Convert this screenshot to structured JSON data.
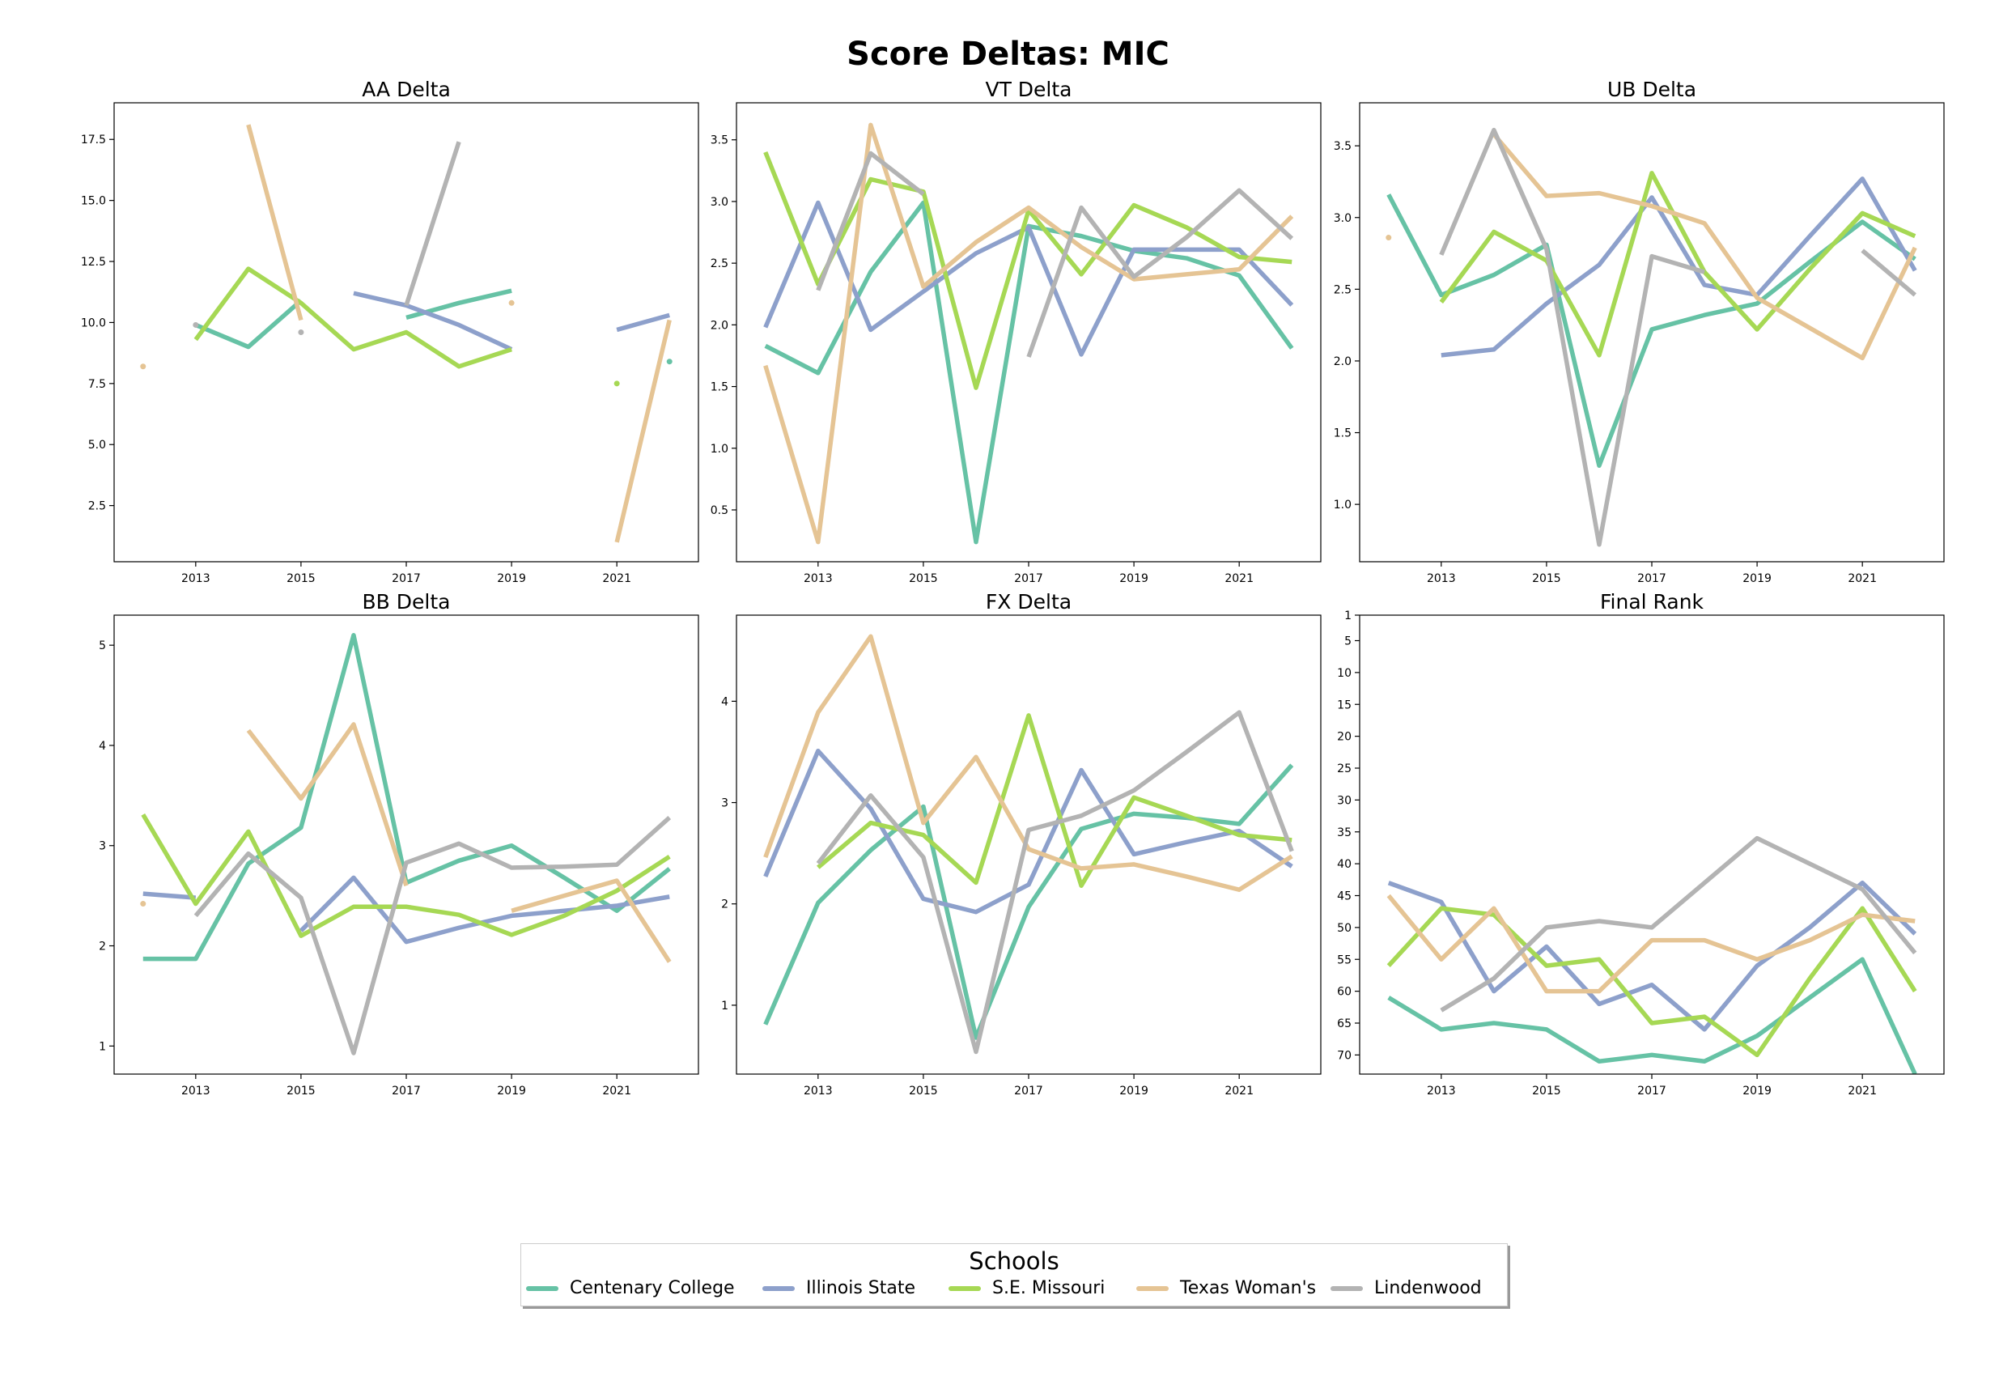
{
  "figure": {
    "title": "Score Deltas: MIC",
    "legend_title": "Schools"
  },
  "schools": [
    {
      "name": "Centenary College",
      "color": "#66c2a5"
    },
    {
      "name": "Illinois State",
      "color": "#8da0cb"
    },
    {
      "name": "S.E. Missouri",
      "color": "#a6d854"
    },
    {
      "name": "Texas Woman's",
      "color": "#e5c494"
    },
    {
      "name": "Lindenwood",
      "color": "#b3b3b3"
    }
  ],
  "chart_data": [
    {
      "type": "line",
      "title": "AA Delta",
      "x": [
        2012,
        2013,
        2014,
        2015,
        2016,
        2017,
        2018,
        2019,
        2020,
        2021,
        2022
      ],
      "xticks": [
        2013,
        2015,
        2017,
        2019,
        2021
      ],
      "ylim": [
        0.2,
        19.0
      ],
      "yticks": [
        2.5,
        5.0,
        7.5,
        10.0,
        12.5,
        15.0,
        17.5
      ],
      "ytick_labels": [
        "2.5",
        "5.0",
        "7.5",
        "10.0",
        "12.5",
        "15.0",
        "17.5"
      ],
      "inverted": false,
      "series": [
        {
          "name": "Centenary College",
          "values": [
            null,
            9.9,
            9.0,
            10.9,
            null,
            10.2,
            10.8,
            11.3,
            null,
            null,
            8.4
          ]
        },
        {
          "name": "Illinois State",
          "values": [
            null,
            null,
            null,
            null,
            11.2,
            10.7,
            9.9,
            8.9,
            null,
            9.7,
            10.3
          ]
        },
        {
          "name": "S.E. Missouri",
          "values": [
            null,
            9.3,
            12.2,
            10.8,
            8.9,
            9.6,
            8.2,
            8.9,
            null,
            7.5,
            null
          ]
        },
        {
          "name": "Texas Woman's",
          "values": [
            8.2,
            null,
            18.1,
            10.1,
            null,
            null,
            null,
            10.8,
            null,
            1.0,
            10.1
          ]
        },
        {
          "name": "Lindenwood",
          "values": [
            null,
            9.9,
            null,
            9.6,
            null,
            10.7,
            17.4,
            null,
            null,
            null,
            null
          ]
        }
      ]
    },
    {
      "type": "line",
      "title": "VT Delta",
      "x": [
        2012,
        2013,
        2014,
        2015,
        2016,
        2017,
        2018,
        2019,
        2020,
        2021,
        2022
      ],
      "xticks": [
        2013,
        2015,
        2017,
        2019,
        2021
      ],
      "ylim": [
        0.08,
        3.8
      ],
      "yticks": [
        0.5,
        1.0,
        1.5,
        2.0,
        2.5,
        3.0,
        3.5
      ],
      "ytick_labels": [
        "0.5",
        "1.0",
        "1.5",
        "2.0",
        "2.5",
        "3.0",
        "3.5"
      ],
      "inverted": false,
      "series": [
        {
          "name": "Centenary College",
          "values": [
            1.83,
            1.61,
            2.43,
            2.99,
            0.24,
            2.8,
            2.72,
            2.6,
            2.54,
            2.4,
            1.81
          ]
        },
        {
          "name": "Illinois State",
          "values": [
            1.98,
            2.99,
            1.96,
            2.27,
            2.58,
            2.79,
            1.76,
            2.61,
            2.61,
            2.61,
            2.16
          ]
        },
        {
          "name": "S.E. Missouri",
          "values": [
            3.4,
            2.33,
            3.18,
            3.08,
            1.49,
            2.93,
            2.41,
            2.97,
            2.79,
            2.55,
            2.51
          ]
        },
        {
          "name": "Texas Woman's",
          "values": [
            1.67,
            0.24,
            3.62,
            2.31,
            2.67,
            2.95,
            2.63,
            2.37,
            2.41,
            2.45,
            2.88
          ]
        },
        {
          "name": "Lindenwood",
          "values": [
            null,
            2.28,
            3.39,
            3.06,
            null,
            1.74,
            2.95,
            2.39,
            2.71,
            3.09,
            2.7
          ]
        }
      ]
    },
    {
      "type": "line",
      "title": "UB Delta",
      "x": [
        2012,
        2013,
        2014,
        2015,
        2016,
        2017,
        2018,
        2019,
        2020,
        2021,
        2022
      ],
      "xticks": [
        2013,
        2015,
        2017,
        2019,
        2021
      ],
      "ylim": [
        0.6,
        3.8
      ],
      "yticks": [
        1.0,
        1.5,
        2.0,
        2.5,
        3.0,
        3.5
      ],
      "ytick_labels": [
        "1.0",
        "1.5",
        "2.0",
        "2.5",
        "3.0",
        "3.5"
      ],
      "inverted": false,
      "series": [
        {
          "name": "Centenary College",
          "values": [
            3.16,
            2.46,
            2.6,
            2.81,
            1.27,
            2.22,
            2.32,
            2.4,
            2.69,
            2.97,
            2.71
          ]
        },
        {
          "name": "Illinois State",
          "values": [
            null,
            2.04,
            2.08,
            2.4,
            2.67,
            3.14,
            2.53,
            2.46,
            2.87,
            3.27,
            2.63
          ]
        },
        {
          "name": "S.E. Missouri",
          "values": [
            null,
            2.41,
            2.9,
            2.7,
            2.04,
            3.31,
            2.62,
            2.22,
            2.64,
            3.03,
            2.87
          ]
        },
        {
          "name": "Texas Woman's",
          "values": [
            2.86,
            null,
            3.58,
            3.15,
            3.17,
            3.08,
            2.96,
            2.44,
            2.23,
            2.02,
            2.79
          ]
        },
        {
          "name": "Lindenwood",
          "values": [
            null,
            2.74,
            3.61,
            2.78,
            0.72,
            2.73,
            2.62,
            null,
            null,
            2.77,
            2.46
          ]
        }
      ]
    },
    {
      "type": "line",
      "title": "BB Delta",
      "x": [
        2012,
        2013,
        2014,
        2015,
        2016,
        2017,
        2018,
        2019,
        2020,
        2021,
        2022
      ],
      "xticks": [
        2013,
        2015,
        2017,
        2019,
        2021
      ],
      "ylim": [
        0.72,
        5.3
      ],
      "yticks": [
        1,
        2,
        3,
        4,
        5
      ],
      "ytick_labels": [
        "1",
        "2",
        "3",
        "4",
        "5"
      ],
      "inverted": false,
      "series": [
        {
          "name": "Centenary College",
          "values": [
            1.87,
            1.87,
            2.82,
            3.18,
            5.1,
            2.63,
            2.85,
            3.0,
            2.68,
            2.35,
            2.77
          ]
        },
        {
          "name": "Illinois State",
          "values": [
            2.52,
            2.48,
            null,
            2.15,
            2.68,
            2.04,
            2.18,
            2.3,
            2.35,
            2.4,
            2.49
          ]
        },
        {
          "name": "S.E. Missouri",
          "values": [
            3.31,
            2.42,
            3.14,
            2.1,
            2.39,
            2.39,
            2.31,
            2.11,
            2.3,
            2.55,
            2.89
          ]
        },
        {
          "name": "Texas Woman's",
          "values": [
            2.42,
            null,
            4.15,
            3.47,
            4.21,
            2.6,
            null,
            2.35,
            2.5,
            2.65,
            1.84
          ]
        },
        {
          "name": "Lindenwood",
          "values": [
            null,
            2.3,
            2.92,
            2.48,
            0.93,
            2.83,
            3.02,
            2.78,
            2.79,
            2.81,
            3.28
          ]
        }
      ]
    },
    {
      "type": "line",
      "title": "FX Delta",
      "x": [
        2012,
        2013,
        2014,
        2015,
        2016,
        2017,
        2018,
        2019,
        2020,
        2021,
        2022
      ],
      "xticks": [
        2013,
        2015,
        2017,
        2019,
        2021
      ],
      "ylim": [
        0.32,
        4.85
      ],
      "yticks": [
        1,
        2,
        3,
        4
      ],
      "ytick_labels": [
        "1",
        "2",
        "3",
        "4"
      ],
      "inverted": false,
      "series": [
        {
          "name": "Centenary College",
          "values": [
            0.81,
            2.01,
            2.53,
            2.96,
            0.68,
            1.97,
            2.74,
            2.89,
            2.85,
            2.79,
            3.37
          ]
        },
        {
          "name": "Illinois State",
          "values": [
            2.27,
            3.51,
            2.94,
            2.05,
            1.92,
            2.19,
            3.32,
            2.49,
            2.61,
            2.72,
            2.37
          ]
        },
        {
          "name": "S.E. Missouri",
          "values": [
            null,
            2.36,
            2.8,
            2.68,
            2.21,
            3.86,
            2.18,
            3.05,
            2.87,
            2.68,
            2.63
          ]
        },
        {
          "name": "Texas Woman's",
          "values": [
            2.46,
            3.89,
            4.64,
            2.8,
            3.45,
            2.54,
            2.35,
            2.39,
            2.27,
            2.14,
            2.47
          ]
        },
        {
          "name": "Lindenwood",
          "values": [
            null,
            2.4,
            3.07,
            2.46,
            0.54,
            2.73,
            2.87,
            3.12,
            3.5,
            3.89,
            2.52
          ]
        }
      ]
    },
    {
      "type": "line",
      "title": "Final Rank",
      "x": [
        2012,
        2013,
        2014,
        2015,
        2016,
        2017,
        2018,
        2019,
        2020,
        2021,
        2022
      ],
      "xticks": [
        2013,
        2015,
        2017,
        2019,
        2021
      ],
      "ylim": [
        73.0,
        1.0
      ],
      "yticks": [
        1,
        5,
        10,
        15,
        20,
        25,
        30,
        35,
        40,
        45,
        50,
        55,
        60,
        65,
        70
      ],
      "ytick_labels": [
        "1",
        "5",
        "10",
        "15",
        "20",
        "25",
        "30",
        "35",
        "40",
        "45",
        "50",
        "55",
        "60",
        "65",
        "70"
      ],
      "inverted": true,
      "series": [
        {
          "name": "Centenary College",
          "values": [
            61,
            66,
            65,
            66,
            71,
            70,
            71,
            67,
            61,
            55,
            73
          ]
        },
        {
          "name": "Illinois State",
          "values": [
            43,
            46,
            60,
            53,
            62,
            59,
            66,
            56,
            50,
            43,
            51
          ]
        },
        {
          "name": "S.E. Missouri",
          "values": [
            56,
            47,
            48,
            56,
            55,
            65,
            64,
            70,
            58,
            47,
            60
          ]
        },
        {
          "name": "Texas Woman's",
          "values": [
            45,
            55,
            47,
            60,
            60,
            52,
            52,
            55,
            52,
            48,
            49
          ]
        },
        {
          "name": "Lindenwood",
          "values": [
            null,
            63,
            58,
            50,
            49,
            50,
            43,
            36,
            40,
            44,
            54
          ]
        }
      ]
    }
  ]
}
